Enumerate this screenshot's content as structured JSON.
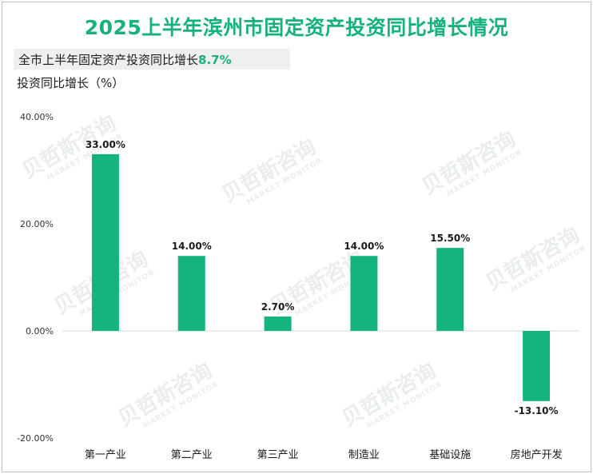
{
  "title": "2025上半年滨州市固定资产投资同比增长情况",
  "summary": {
    "label": "全市上半年固定资产投资同比增长",
    "value": "8.7%"
  },
  "colors": {
    "accent": "#17b07f",
    "bar": "#15b37e",
    "axis": "#d9d9d9"
  },
  "watermark": {
    "cn": "贝哲斯咨询",
    "en": "MARKET MONITOR"
  },
  "chart_data": {
    "type": "bar",
    "title": "2025上半年滨州市固定资产投资同比增长情况",
    "ylabel": "投资同比增长（%）",
    "xlabel": "",
    "categories": [
      "第一产业",
      "第二产业",
      "第三产业",
      "制造业",
      "基础设施",
      "房地产开发"
    ],
    "values": [
      33.0,
      14.0,
      2.7,
      14.0,
      15.5,
      -13.1
    ],
    "data_labels": [
      "33.00%",
      "14.00%",
      "2.70%",
      "14.00%",
      "15.50%",
      "-13.10%"
    ],
    "ylim": [
      -20,
      40
    ],
    "yticks": [
      40,
      20,
      0,
      -20
    ],
    "ytick_labels": [
      "40.00%",
      "20.00%",
      "0.00%",
      "-20.00%"
    ],
    "grid": false,
    "legend": "none"
  }
}
